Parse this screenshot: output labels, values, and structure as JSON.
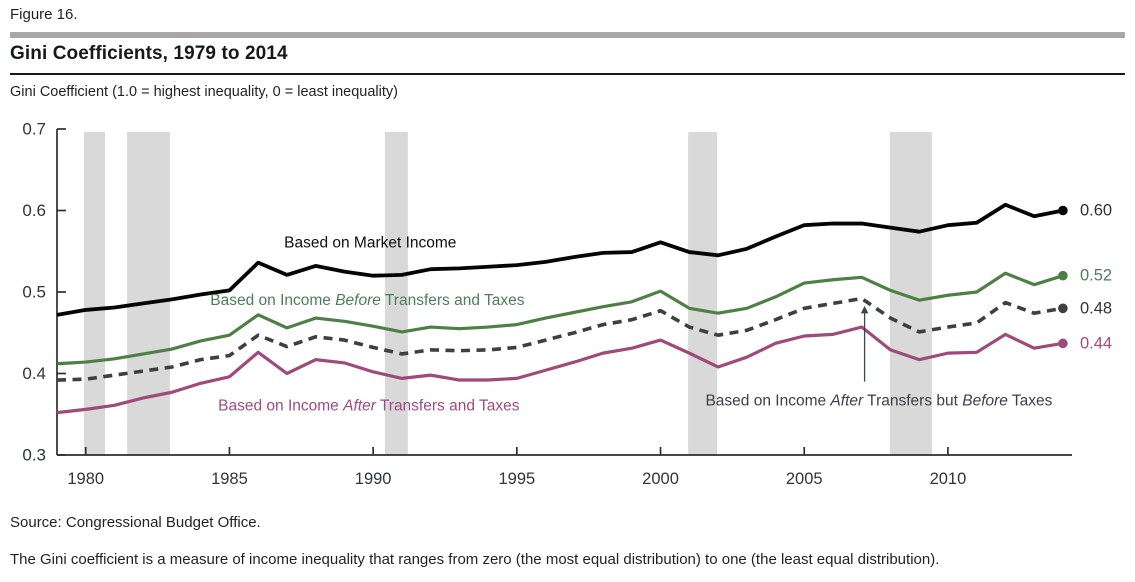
{
  "header": {
    "figure_label": "Figure 16.",
    "title": "Gini Coefficients, 1979 to 2014",
    "subtitle": "Gini Coefficient (1.0 = highest inequality, 0 = least inequality)"
  },
  "footer": {
    "source": "Source: Congressional Budget Office.",
    "note": "The Gini coefficient is a measure of income inequality that ranges from zero (the most equal distribution) to one (the least equal distribution)."
  },
  "chart_data": {
    "type": "line",
    "title": "Gini Coefficients, 1979 to 2014",
    "ylabel": "Gini Coefficient (1.0 = highest inequality, 0 = least inequality)",
    "xlabel": "",
    "ylim": [
      0.3,
      0.7
    ],
    "grid": false,
    "legend_position": "inline-labels",
    "axis_color": "#2e2e2e",
    "tick_label_color": "#2f353c",
    "band_color": "#d9d9d9",
    "x": [
      1979,
      1980,
      1981,
      1982,
      1983,
      1984,
      1985,
      1986,
      1987,
      1988,
      1989,
      1990,
      1991,
      1992,
      1993,
      1994,
      1995,
      1996,
      1997,
      1998,
      1999,
      2000,
      2001,
      2002,
      2003,
      2004,
      2005,
      2006,
      2007,
      2008,
      2009,
      2010,
      2011,
      2012,
      2013,
      2014
    ],
    "yticks": [
      {
        "value": 0.3,
        "label": "0.3"
      },
      {
        "value": 0.4,
        "label": "0.4"
      },
      {
        "value": 0.5,
        "label": "0.5"
      },
      {
        "value": 0.6,
        "label": "0.6"
      },
      {
        "value": 0.7,
        "label": "0.7"
      }
    ],
    "xticks": [
      {
        "value": 1980,
        "label": "1980"
      },
      {
        "value": 1985,
        "label": "1985"
      },
      {
        "value": 1990,
        "label": "1990"
      },
      {
        "value": 1995,
        "label": "1995"
      },
      {
        "value": 2000,
        "label": "2000"
      },
      {
        "value": 2005,
        "label": "2005"
      },
      {
        "value": 2010,
        "label": "2010"
      }
    ],
    "recession_bands": [
      [
        1979.94,
        1980.67
      ],
      [
        1981.44,
        1982.93
      ],
      [
        1990.41,
        1991.21
      ],
      [
        2000.96,
        2001.97
      ],
      [
        2007.98,
        2009.44
      ]
    ],
    "series": [
      {
        "id": "market-income",
        "name": "Based on Market Income",
        "color": "#050505",
        "label_color": "#2b313a",
        "width": 3.8,
        "dash": null,
        "end_label": "0.60",
        "values": [
          0.472,
          0.478,
          0.481,
          0.486,
          0.491,
          0.497,
          0.502,
          0.536,
          0.521,
          0.532,
          0.525,
          0.52,
          0.521,
          0.528,
          0.529,
          0.531,
          0.533,
          0.537,
          0.543,
          0.548,
          0.549,
          0.561,
          0.549,
          0.545,
          0.553,
          0.568,
          0.582,
          0.584,
          0.584,
          0.579,
          0.574,
          0.582,
          0.585,
          0.607,
          0.593,
          0.6
        ]
      },
      {
        "id": "before-transfers-and-taxes",
        "name": "Based on Income Before Transfers and Taxes",
        "color": "#4e8046",
        "label_color": "#4f7d5c",
        "width": 3.2,
        "dash": null,
        "end_label": "0.52",
        "values": [
          0.412,
          0.414,
          0.418,
          0.424,
          0.43,
          0.44,
          0.447,
          0.472,
          0.456,
          0.468,
          0.464,
          0.458,
          0.451,
          0.457,
          0.455,
          0.457,
          0.46,
          0.468,
          0.475,
          0.482,
          0.488,
          0.501,
          0.48,
          0.474,
          0.48,
          0.494,
          0.511,
          0.515,
          0.518,
          0.502,
          0.49,
          0.496,
          0.5,
          0.523,
          0.509,
          0.52
        ]
      },
      {
        "id": "after-transfers-before-taxes",
        "name": "Based on Income After Transfers but Before Taxes",
        "color": "#3f3f3f",
        "label_color": "#2c343f",
        "width": 3.6,
        "dash": "9,6.5",
        "end_label": "0.48",
        "values": [
          0.392,
          0.393,
          0.398,
          0.403,
          0.408,
          0.417,
          0.422,
          0.447,
          0.433,
          0.445,
          0.441,
          0.432,
          0.424,
          0.429,
          0.428,
          0.429,
          0.432,
          0.441,
          0.45,
          0.46,
          0.466,
          0.477,
          0.457,
          0.447,
          0.453,
          0.466,
          0.48,
          0.486,
          0.492,
          0.468,
          0.451,
          0.457,
          0.462,
          0.487,
          0.474,
          0.48
        ]
      },
      {
        "id": "after-transfers-and-taxes",
        "name": "Based on Income After Transfers and Taxes",
        "color": "#9e4a7b",
        "label_color": "#a84a74",
        "width": 3.2,
        "dash": null,
        "end_label": "0.44",
        "values": [
          0.352,
          0.356,
          0.361,
          0.37,
          0.377,
          0.388,
          0.396,
          0.426,
          0.4,
          0.417,
          0.413,
          0.402,
          0.394,
          0.398,
          0.392,
          0.392,
          0.394,
          0.404,
          0.414,
          0.425,
          0.431,
          0.441,
          0.425,
          0.408,
          0.42,
          0.437,
          0.446,
          0.448,
          0.457,
          0.429,
          0.417,
          0.425,
          0.426,
          0.448,
          0.431,
          0.437
        ]
      }
    ],
    "labels": [
      {
        "id": "label-market-income",
        "text": "Based on Market Income",
        "color": "#0b0e12",
        "year": 1989.9,
        "value": 0.561
      },
      {
        "id": "label-before-transfers-and-taxes",
        "text": "Based on Income *Before* Transfers and Taxes",
        "color": "#4f7d5c",
        "year": 1989.8,
        "value": 0.49
      },
      {
        "id": "label-after-transfers-and-taxes",
        "text": "Based on Income *After* Transfers and Taxes",
        "color": "#9f4b7f",
        "year": 1989.85,
        "value": 0.361
      },
      {
        "id": "label-after-transfers-before-taxes",
        "text": "Based on Income *After* Transfers but *Before* Taxes",
        "color": "#3a4149",
        "year": 2007.6,
        "value": 0.367
      }
    ],
    "arrow": {
      "year": 2007.1,
      "from_value": 0.39,
      "to_value": 0.483,
      "color": "#3f454c"
    }
  }
}
